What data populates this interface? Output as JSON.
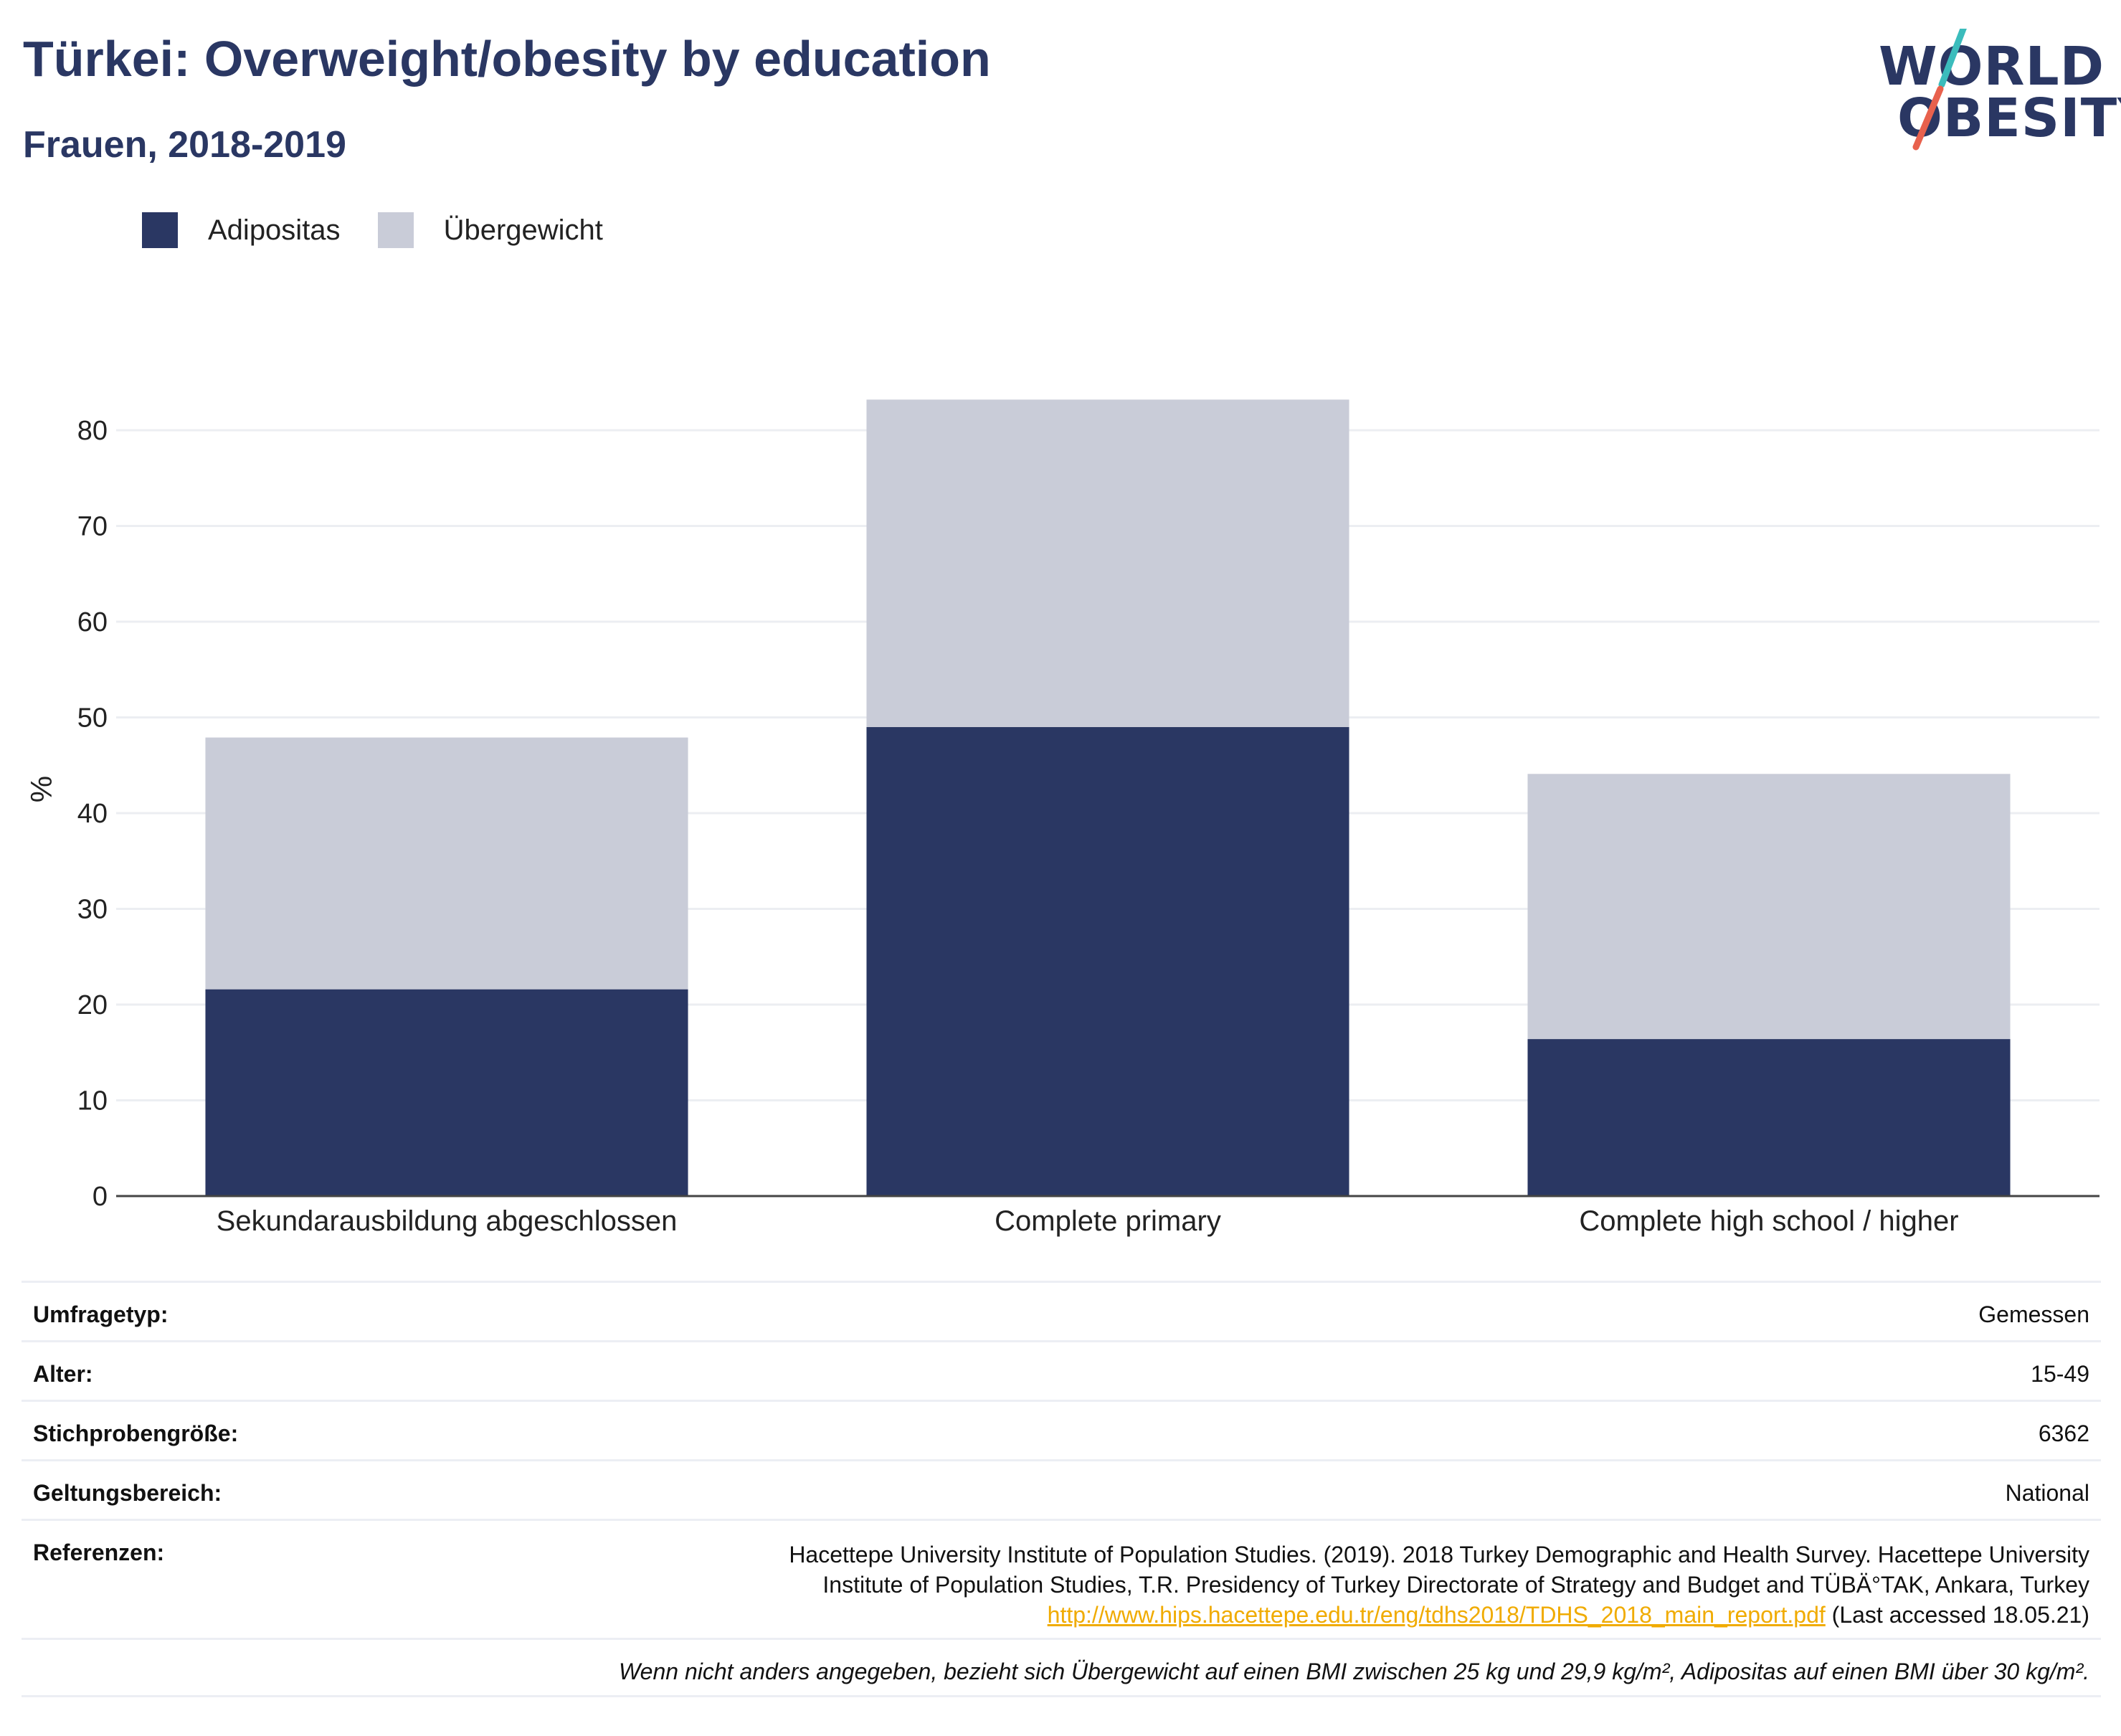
{
  "header": {
    "title": "Türkei: Overweight/obesity by education",
    "subtitle": "Frauen, 2018-2019"
  },
  "logo": {
    "line1": "WORLD",
    "line2": "OBESITY",
    "accent_teal": "#3bbcbc",
    "accent_red": "#e8614d"
  },
  "colors": {
    "obesity": "#2a3763",
    "overweight": "#c9ccd8",
    "title": "#2a3763",
    "link": "#f0ab00"
  },
  "legend": [
    {
      "label": "Adipositas",
      "color": "#2a3763"
    },
    {
      "label": "Übergewicht",
      "color": "#c9ccd8"
    }
  ],
  "chart_data": {
    "type": "bar",
    "stacked": true,
    "categories": [
      "Sekundarausbildung abgeschlossen",
      "Complete primary",
      "Complete high school / higher"
    ],
    "series": [
      {
        "name": "Adipositas",
        "values": [
          21.6,
          49.0,
          16.4
        ]
      },
      {
        "name": "Übergewicht",
        "values": [
          26.3,
          34.2,
          27.7
        ]
      }
    ],
    "ylabel": "%",
    "xlabel": "",
    "ylim": [
      0,
      85
    ],
    "yticks": [
      0,
      10,
      20,
      30,
      40,
      50,
      60,
      70,
      80
    ],
    "grid": true,
    "legend_position": "top-left"
  },
  "info": {
    "survey_type_label": "Umfragetyp:",
    "survey_type_value": "Gemessen",
    "age_label": "Alter:",
    "age_value": "15-49",
    "sample_label": "Stichprobengröße:",
    "sample_value": "6362",
    "scope_label": "Geltungsbereich:",
    "scope_value": "National",
    "references_label": "Referenzen:",
    "reference_line1": "Hacettepe University Institute of Population Studies. (2019). 2018 Turkey Demographic and Health Survey. Hacettepe University",
    "reference_line2": "Institute of Population Studies, T.R. Presidency of Turkey Directorate of Strategy and Budget and TÜBÄ°TAK, Ankara, Turkey",
    "reference_link": "http://www.hips.hacettepe.edu.tr/eng/tdhs2018/TDHS_2018_main_report.pdf",
    "reference_accessed": " (Last accessed 18.05.21)",
    "note": "Wenn nicht anders angegeben, bezieht sich Übergewicht auf einen BMI zwischen 25 kg und 29,9 kg/m², Adipositas auf einen BMI über 30 kg/m²."
  }
}
